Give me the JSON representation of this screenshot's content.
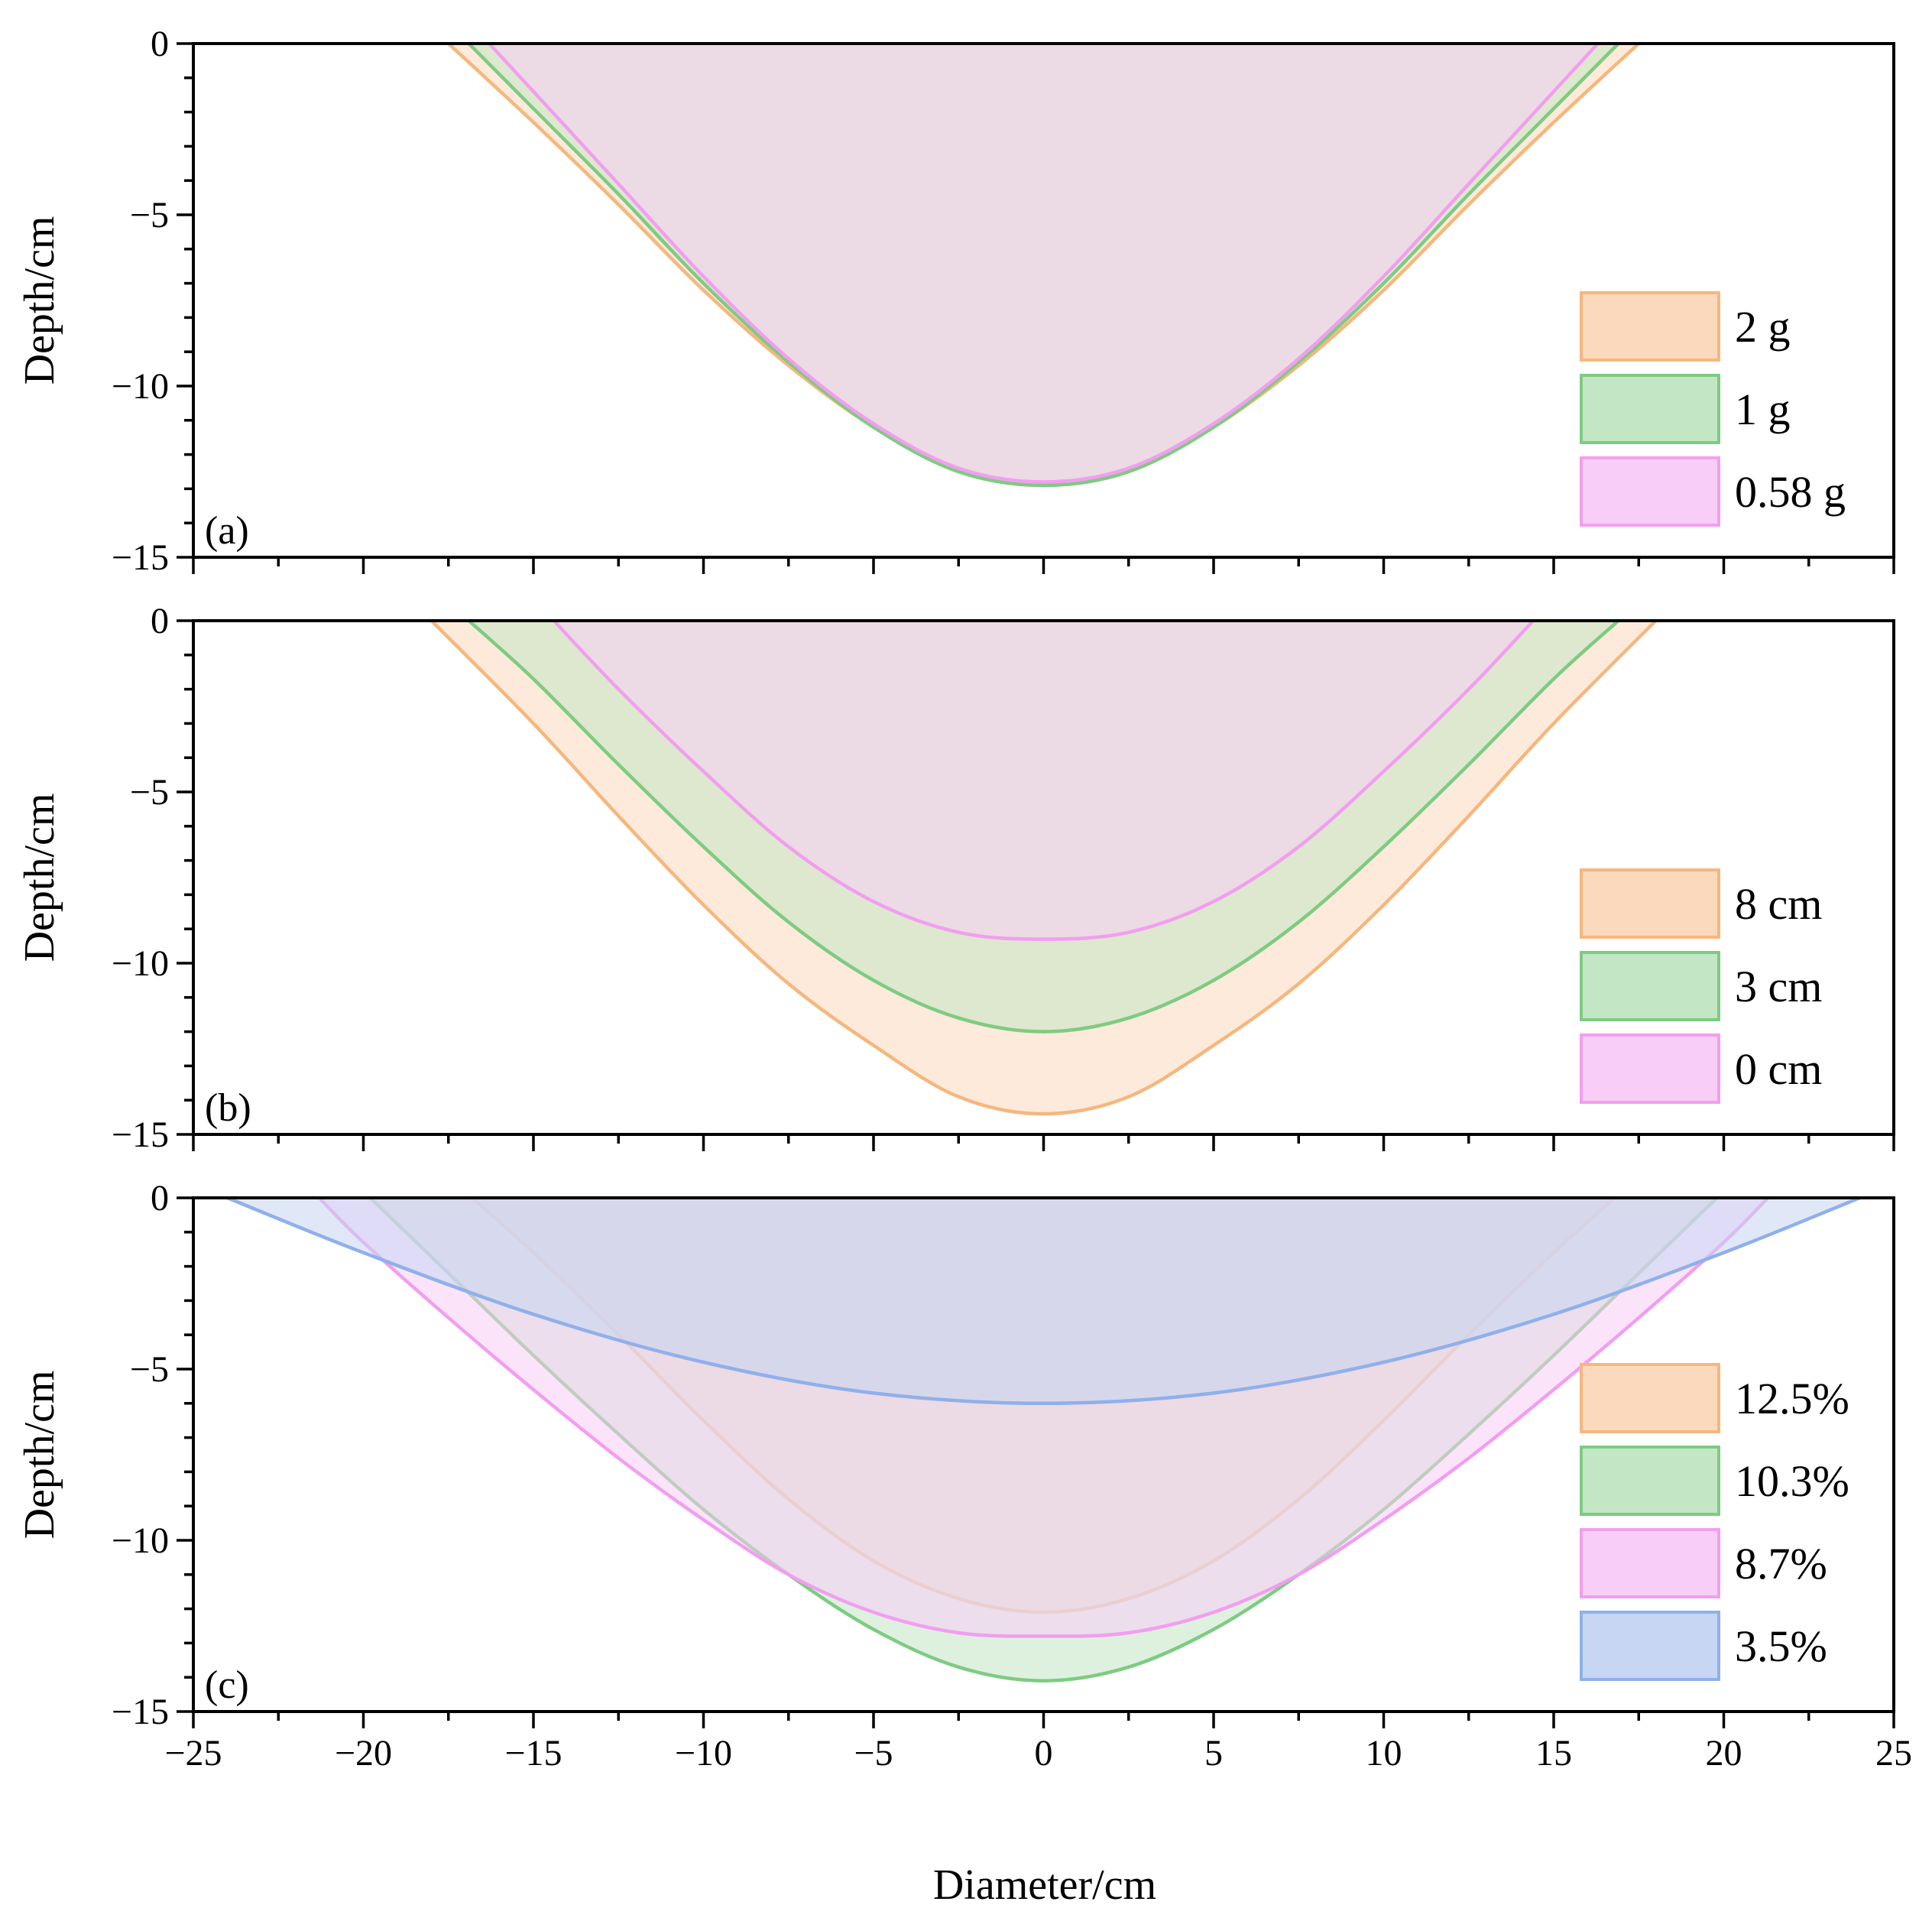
{
  "chart_data": [
    {
      "panel": "(a)",
      "type": "area",
      "ylabel": "Depth/cm",
      "xlim": [
        -25,
        25
      ],
      "ylim": [
        -15,
        0
      ],
      "yticks": [
        0,
        -5,
        -10,
        -15
      ],
      "ytick_labels": [
        "0",
        "−5",
        "−10",
        "−15"
      ],
      "legend_position": "bottom-right",
      "series": [
        {
          "name": "2 g",
          "color": "#f5b77e",
          "fill": "#fbd9bc",
          "x": [
            -17.5,
            -15,
            -12.5,
            -10,
            -7.5,
            -5,
            -2.5,
            0,
            2.5,
            5,
            7.5,
            10,
            12.5,
            15,
            17.5
          ],
          "y": [
            0,
            -2.3,
            -4.7,
            -7.2,
            -9.4,
            -11.2,
            -12.5,
            -12.9,
            -12.5,
            -11.2,
            -9.4,
            -7.2,
            -4.7,
            -2.3,
            0
          ]
        },
        {
          "name": "1 g",
          "color": "#7ecb82",
          "fill": "#c3e6c5",
          "x": [
            -16.9,
            -15,
            -12.5,
            -10,
            -7.5,
            -5,
            -2.5,
            0,
            2.5,
            5,
            7.5,
            10,
            12.5,
            15,
            16.9
          ],
          "y": [
            0,
            -1.9,
            -4.4,
            -7.0,
            -9.3,
            -11.2,
            -12.5,
            -12.9,
            -12.5,
            -11.2,
            -9.3,
            -7.0,
            -4.4,
            -1.9,
            0
          ]
        },
        {
          "name": "0.58 g",
          "color": "#f29ef0",
          "fill": "#f8cdf6",
          "x": [
            -16.3,
            -15,
            -12.5,
            -10,
            -7.5,
            -5,
            -2.5,
            0,
            2.5,
            5,
            7.5,
            10,
            12.5,
            15,
            16.3
          ],
          "y": [
            0,
            -1.4,
            -4.1,
            -6.8,
            -9.2,
            -11.1,
            -12.4,
            -12.8,
            -12.4,
            -11.1,
            -9.2,
            -6.8,
            -4.1,
            -1.4,
            0
          ]
        }
      ]
    },
    {
      "panel": "(b)",
      "type": "area",
      "ylabel": "Depth/cm",
      "xlim": [
        -25,
        25
      ],
      "ylim": [
        -15,
        0
      ],
      "yticks": [
        0,
        -5,
        -10,
        -15
      ],
      "ytick_labels": [
        "0",
        "−5",
        "−10",
        "−15"
      ],
      "legend_position": "bottom-right",
      "series": [
        {
          "name": "8 cm",
          "color": "#f5b77e",
          "fill": "#fbd9bc",
          "x": [
            -18,
            -15,
            -12.5,
            -10,
            -7.5,
            -5,
            -2.5,
            0,
            2.5,
            5,
            7.5,
            10,
            12.5,
            15,
            18
          ],
          "y": [
            0,
            -3.0,
            -5.7,
            -8.3,
            -10.6,
            -12.4,
            -13.9,
            -14.4,
            -13.9,
            -12.4,
            -10.6,
            -8.3,
            -5.7,
            -3.0,
            0
          ]
        },
        {
          "name": "3 cm",
          "color": "#7ecb82",
          "fill": "#c3e6c5",
          "x": [
            -16.9,
            -15,
            -12.5,
            -10,
            -7.5,
            -5,
            -2.5,
            0,
            2.5,
            5,
            7.5,
            10,
            12.5,
            15,
            16.9
          ],
          "y": [
            0,
            -1.7,
            -4.2,
            -6.6,
            -8.8,
            -10.5,
            -11.6,
            -12.0,
            -11.6,
            -10.5,
            -8.8,
            -6.6,
            -4.2,
            -1.7,
            0
          ]
        },
        {
          "name": "0 cm",
          "color": "#f29ef0",
          "fill": "#f8cdf6",
          "x": [
            -14.4,
            -12.5,
            -10,
            -7.5,
            -5,
            -2.5,
            0,
            2.5,
            5,
            7.5,
            10,
            12.5,
            14.4
          ],
          "y": [
            0,
            -2.0,
            -4.4,
            -6.6,
            -8.2,
            -9.1,
            -9.3,
            -9.1,
            -8.2,
            -6.6,
            -4.4,
            -2.0,
            0
          ]
        }
      ]
    },
    {
      "panel": "(c)",
      "type": "area",
      "ylabel": "Depth/cm",
      "xlabel": "Diameter/cm",
      "xlim": [
        -25,
        25
      ],
      "ylim": [
        -15,
        0
      ],
      "xticks": [
        -25,
        -20,
        -15,
        -10,
        -5,
        0,
        5,
        10,
        15,
        20,
        25
      ],
      "xtick_labels": [
        "−25",
        "−20",
        "−15",
        "−10",
        "−5",
        "0",
        "5",
        "10",
        "15",
        "20",
        "25"
      ],
      "yticks": [
        0,
        -5,
        -10,
        -15
      ],
      "ytick_labels": [
        "0",
        "−5",
        "−10",
        "−15"
      ],
      "legend_position": "bottom-right",
      "series": [
        {
          "name": "12.5%",
          "color": "#f5b77e",
          "fill": "#fbd9bc",
          "x": [
            -16.8,
            -15,
            -12.5,
            -10,
            -7.5,
            -5,
            -2.5,
            0,
            2.5,
            5,
            7.5,
            10,
            12.5,
            15,
            16.8
          ],
          "y": [
            0,
            -1.6,
            -4.0,
            -6.5,
            -8.8,
            -10.6,
            -11.7,
            -12.1,
            -11.7,
            -10.6,
            -8.8,
            -6.5,
            -4.0,
            -1.6,
            0
          ]
        },
        {
          "name": "10.3%",
          "color": "#7ecb82",
          "fill": "#c3e6c5",
          "x": [
            -19.8,
            -17.5,
            -15,
            -12.5,
            -10,
            -7.5,
            -5,
            -2.5,
            0,
            2.5,
            5,
            7.5,
            10,
            12.5,
            15,
            17.5,
            19.8
          ],
          "y": [
            0,
            -2.2,
            -4.6,
            -6.9,
            -9.1,
            -11.0,
            -12.6,
            -13.7,
            -14.1,
            -13.7,
            -12.6,
            -11.0,
            -9.1,
            -6.9,
            -4.6,
            -2.2,
            0
          ]
        },
        {
          "name": "8.7%",
          "color": "#f29ef0",
          "fill": "#f8cdf6",
          "x": [
            -21.3,
            -20,
            -17.5,
            -15,
            -12.5,
            -10,
            -7.5,
            -5,
            -2.5,
            0,
            2.5,
            5,
            7.5,
            10,
            12.5,
            15,
            17.5,
            20,
            21.3
          ],
          "y": [
            0,
            -1.3,
            -3.5,
            -5.6,
            -7.6,
            -9.4,
            -11.0,
            -12.1,
            -12.7,
            -12.8,
            -12.7,
            -12.1,
            -11.0,
            -9.4,
            -7.6,
            -5.6,
            -3.5,
            -1.3,
            0
          ]
        },
        {
          "name": "3.5%",
          "color": "#8fb0ea",
          "fill": "#c7d6f3",
          "x": [
            -24,
            -20,
            -15,
            -10,
            -5,
            0,
            5,
            10,
            15,
            20,
            24
          ],
          "y": [
            0,
            -1.6,
            -3.4,
            -4.8,
            -5.7,
            -6.0,
            -5.7,
            -4.8,
            -3.4,
            -1.6,
            0
          ]
        }
      ]
    }
  ]
}
